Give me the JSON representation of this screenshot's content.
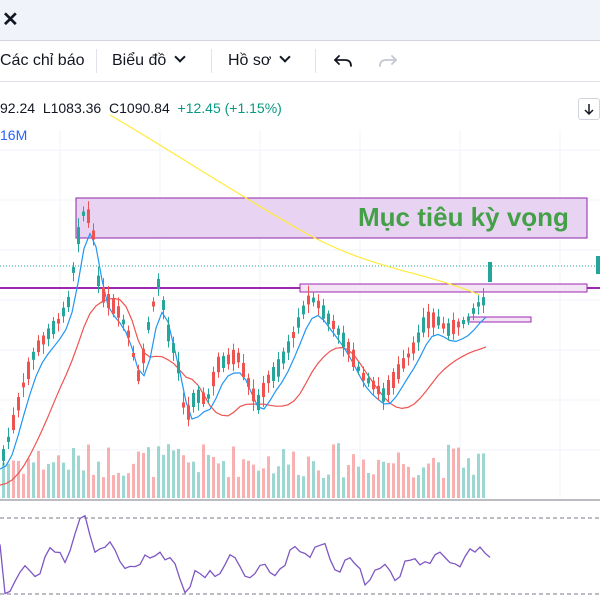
{
  "window": {
    "close_glyph": "✕"
  },
  "toolbar": {
    "indicators_label": "Các chỉ báo",
    "chart_type_label": "Biểu đồ",
    "profile_label": "Hồ sơ"
  },
  "legend": {
    "open_text": "92.24",
    "low_text": "L1083.36",
    "close_text": "C1090.84",
    "change_text": "+12.45 (+1.15%)",
    "volume_text": "16M"
  },
  "annotation": {
    "target_label": "Mục tiêu kỳ vọng",
    "target_zone_color": "#e8d4f2",
    "target_zone_border": "#8e24aa",
    "line_color": "#9c27b0",
    "label_color": "#43a047"
  },
  "colors": {
    "up": "#26a69a",
    "down": "#ef5350",
    "ma_fast": "#2196f3",
    "ma_slow": "#ef5350",
    "ma_long": "#ffeb3b",
    "rsi": "#7e57c2"
  },
  "icons": {
    "undo": "undo-arrow-icon",
    "redo": "redo-arrow-icon",
    "scroll": "scroll-down-icon",
    "close": "close-icon"
  }
}
